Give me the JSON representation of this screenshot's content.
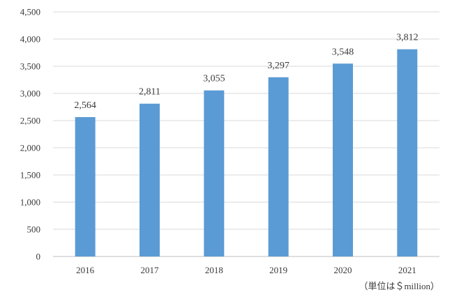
{
  "chart_data": {
    "type": "bar",
    "categories": [
      "2016",
      "2017",
      "2018",
      "2019",
      "2020",
      "2021"
    ],
    "values": [
      2564,
      2811,
      3055,
      3297,
      3548,
      3812
    ],
    "value_labels": [
      "2,564",
      "2,811",
      "3,055",
      "3,297",
      "3,548",
      "3,812"
    ],
    "title": "",
    "xlabel": "",
    "ylabel": "",
    "ylim": [
      0,
      4500
    ],
    "y_ticks": [
      0,
      500,
      1000,
      1500,
      2000,
      2500,
      3000,
      3500,
      4000,
      4500
    ],
    "y_tick_labels": [
      "0",
      "500",
      "1,000",
      "1,500",
      "2,000",
      "2,500",
      "3,000",
      "3,500",
      "4,000",
      "4,500"
    ],
    "unit_note": "（単位は＄million）",
    "grid": true,
    "legend": "none",
    "bar_color": "#5b9bd5"
  }
}
